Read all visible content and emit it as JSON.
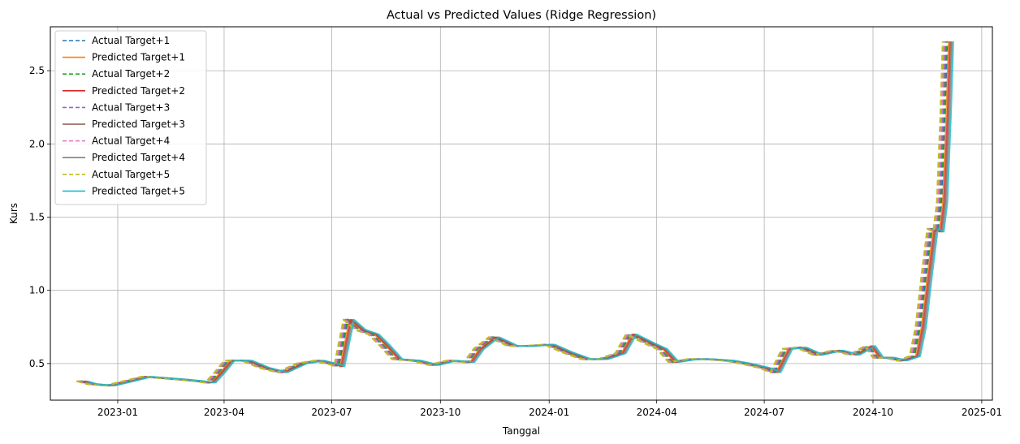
{
  "chart_data": {
    "type": "line",
    "title": "Actual vs Predicted Values (Ridge Regression)",
    "xlabel": "Tanggal",
    "ylabel": "Kurs",
    "xlim": [
      "2022-11-05",
      "2025-01-10"
    ],
    "ylim": [
      0.25,
      2.8
    ],
    "x_ticks": [
      "2023-01",
      "2023-04",
      "2023-07",
      "2023-10",
      "2024-01",
      "2024-04",
      "2024-07",
      "2024-10",
      "2025-01"
    ],
    "y_ticks": [
      0.5,
      1.0,
      1.5,
      2.0,
      2.5
    ],
    "y_tick_labels": [
      "0.5",
      "1.0",
      "1.5",
      "2.0",
      "2.5"
    ],
    "grid": true,
    "legend_position": "top-left",
    "base_series": {
      "x": [
        "2022-12-01",
        "2022-12-10",
        "2022-12-25",
        "2023-01-10",
        "2023-01-25",
        "2023-02-10",
        "2023-02-25",
        "2023-03-10",
        "2023-03-20",
        "2023-03-28",
        "2023-04-05",
        "2023-04-20",
        "2023-05-05",
        "2023-05-20",
        "2023-06-05",
        "2023-06-20",
        "2023-07-05",
        "2023-07-07",
        "2023-07-15",
        "2023-07-25",
        "2023-08-05",
        "2023-08-15",
        "2023-08-25",
        "2023-09-10",
        "2023-09-25",
        "2023-10-10",
        "2023-10-25",
        "2023-11-02",
        "2023-11-15",
        "2023-12-01",
        "2023-12-15",
        "2024-01-01",
        "2024-01-15",
        "2024-02-01",
        "2024-02-15",
        "2024-03-01",
        "2024-03-10",
        "2024-03-25",
        "2024-04-05",
        "2024-04-15",
        "2024-05-01",
        "2024-05-15",
        "2024-06-01",
        "2024-06-15",
        "2024-07-01",
        "2024-07-10",
        "2024-07-20",
        "2024-08-01",
        "2024-08-15",
        "2024-09-01",
        "2024-09-15",
        "2024-09-28",
        "2024-10-05",
        "2024-10-15",
        "2024-10-25",
        "2024-11-05",
        "2024-11-10",
        "2024-11-15",
        "2024-11-20",
        "2024-11-25",
        "2024-11-28",
        "2024-12-01",
        "2024-12-03"
      ],
      "y": [
        0.38,
        0.36,
        0.35,
        0.38,
        0.41,
        0.4,
        0.39,
        0.38,
        0.37,
        0.44,
        0.52,
        0.52,
        0.47,
        0.44,
        0.5,
        0.52,
        0.49,
        0.48,
        0.8,
        0.73,
        0.7,
        0.62,
        0.53,
        0.52,
        0.49,
        0.52,
        0.51,
        0.6,
        0.68,
        0.62,
        0.62,
        0.63,
        0.58,
        0.53,
        0.53,
        0.57,
        0.7,
        0.64,
        0.6,
        0.51,
        0.53,
        0.53,
        0.52,
        0.5,
        0.47,
        0.44,
        0.6,
        0.61,
        0.56,
        0.59,
        0.56,
        0.62,
        0.54,
        0.54,
        0.52,
        0.55,
        0.75,
        1.1,
        1.42,
        1.4,
        1.6,
        2.2,
        2.7
      ]
    },
    "series": [
      {
        "name": "Actual Target+1",
        "color": "#1f77b4",
        "style": "dashed",
        "shift_days": 0
      },
      {
        "name": "Predicted Target+1",
        "color": "#ff7f0e",
        "style": "solid",
        "shift_days": 1
      },
      {
        "name": "Actual Target+2",
        "color": "#2ca02c",
        "style": "dashed",
        "shift_days": -1
      },
      {
        "name": "Predicted Target+2",
        "color": "#d62728",
        "style": "solid",
        "shift_days": 2
      },
      {
        "name": "Actual Target+3",
        "color": "#9467bd",
        "style": "dashed",
        "shift_days": -2
      },
      {
        "name": "Predicted Target+3",
        "color": "#8c564b",
        "style": "solid",
        "shift_days": 3
      },
      {
        "name": "Actual Target+4",
        "color": "#e377c2",
        "style": "dashed",
        "shift_days": -3
      },
      {
        "name": "Predicted Target+4",
        "color": "#7f7f7f",
        "style": "solid",
        "shift_days": 4
      },
      {
        "name": "Actual Target+5",
        "color": "#bcbd22",
        "style": "dashed",
        "shift_days": -4
      },
      {
        "name": "Predicted Target+5",
        "color": "#17becf",
        "style": "solid",
        "shift_days": 5
      }
    ]
  }
}
